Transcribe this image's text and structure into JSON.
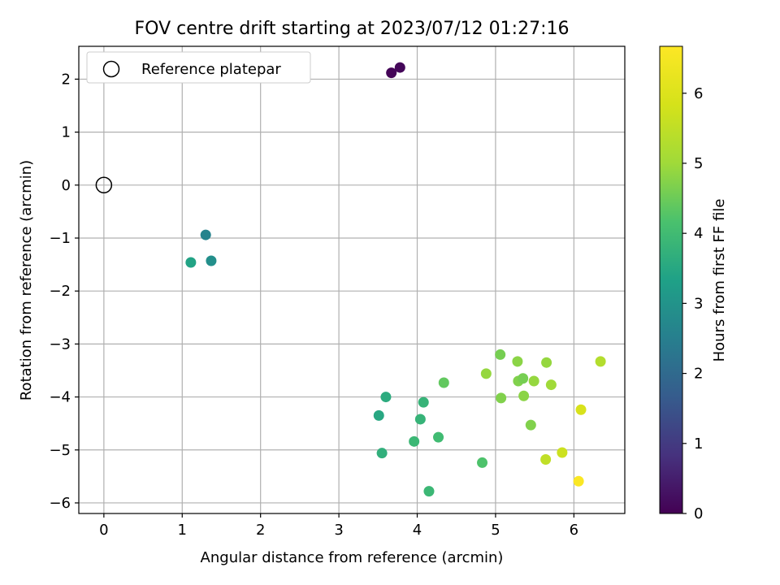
{
  "chart_data": {
    "type": "scatter",
    "title": "FOV centre drift starting at 2023/07/12 01:27:16",
    "xlabel": "Angular distance from reference (arcmin)",
    "ylabel": "Rotation from reference (arcmin)",
    "xlim": [
      -0.32,
      6.65
    ],
    "ylim": [
      -6.2,
      2.62
    ],
    "xticks": [
      0,
      1,
      2,
      3,
      4,
      5,
      6
    ],
    "yticks": [
      -6,
      -5,
      -4,
      -3,
      -2,
      -1,
      0,
      1,
      2
    ],
    "grid": true,
    "legend": {
      "position": "top-left",
      "entries": [
        "Reference platepar"
      ]
    },
    "reference_point": {
      "x": 0,
      "y": 0
    },
    "colorbar": {
      "label": "Hours from first FF file",
      "min": 0,
      "max": 6.67,
      "ticks": [
        0,
        1,
        2,
        3,
        4,
        5,
        6
      ],
      "colormap": "viridis"
    },
    "points": [
      {
        "x": 3.67,
        "y": 2.12,
        "c": 0.05
      },
      {
        "x": 3.78,
        "y": 2.22,
        "c": 0.1
      },
      {
        "x": 1.3,
        "y": -0.94,
        "c": 2.6
      },
      {
        "x": 1.37,
        "y": -1.43,
        "c": 2.9
      },
      {
        "x": 1.11,
        "y": -1.46,
        "c": 3.4
      },
      {
        "x": 3.6,
        "y": -4.0,
        "c": 3.6
      },
      {
        "x": 3.51,
        "y": -4.35,
        "c": 3.5
      },
      {
        "x": 3.55,
        "y": -5.06,
        "c": 3.7
      },
      {
        "x": 4.08,
        "y": -4.1,
        "c": 3.8
      },
      {
        "x": 4.04,
        "y": -4.42,
        "c": 3.8
      },
      {
        "x": 3.96,
        "y": -4.84,
        "c": 3.9
      },
      {
        "x": 4.27,
        "y": -4.76,
        "c": 4.0
      },
      {
        "x": 4.15,
        "y": -5.78,
        "c": 3.9
      },
      {
        "x": 4.34,
        "y": -3.73,
        "c": 4.4
      },
      {
        "x": 4.83,
        "y": -5.24,
        "c": 4.2
      },
      {
        "x": 4.88,
        "y": -3.56,
        "c": 4.9
      },
      {
        "x": 5.06,
        "y": -3.2,
        "c": 4.6
      },
      {
        "x": 5.07,
        "y": -4.02,
        "c": 4.7
      },
      {
        "x": 5.28,
        "y": -3.33,
        "c": 4.8
      },
      {
        "x": 5.29,
        "y": -3.7,
        "c": 4.7
      },
      {
        "x": 5.35,
        "y": -3.65,
        "c": 4.6
      },
      {
        "x": 5.36,
        "y": -3.98,
        "c": 4.8
      },
      {
        "x": 5.49,
        "y": -3.7,
        "c": 4.9
      },
      {
        "x": 5.45,
        "y": -4.53,
        "c": 4.7
      },
      {
        "x": 5.65,
        "y": -3.35,
        "c": 4.9
      },
      {
        "x": 5.71,
        "y": -3.77,
        "c": 5.0
      },
      {
        "x": 5.64,
        "y": -5.18,
        "c": 5.5
      },
      {
        "x": 5.85,
        "y": -5.05,
        "c": 5.7
      },
      {
        "x": 6.09,
        "y": -4.24,
        "c": 5.9
      },
      {
        "x": 6.34,
        "y": -3.33,
        "c": 5.3
      },
      {
        "x": 6.06,
        "y": -5.59,
        "c": 6.6
      }
    ]
  }
}
